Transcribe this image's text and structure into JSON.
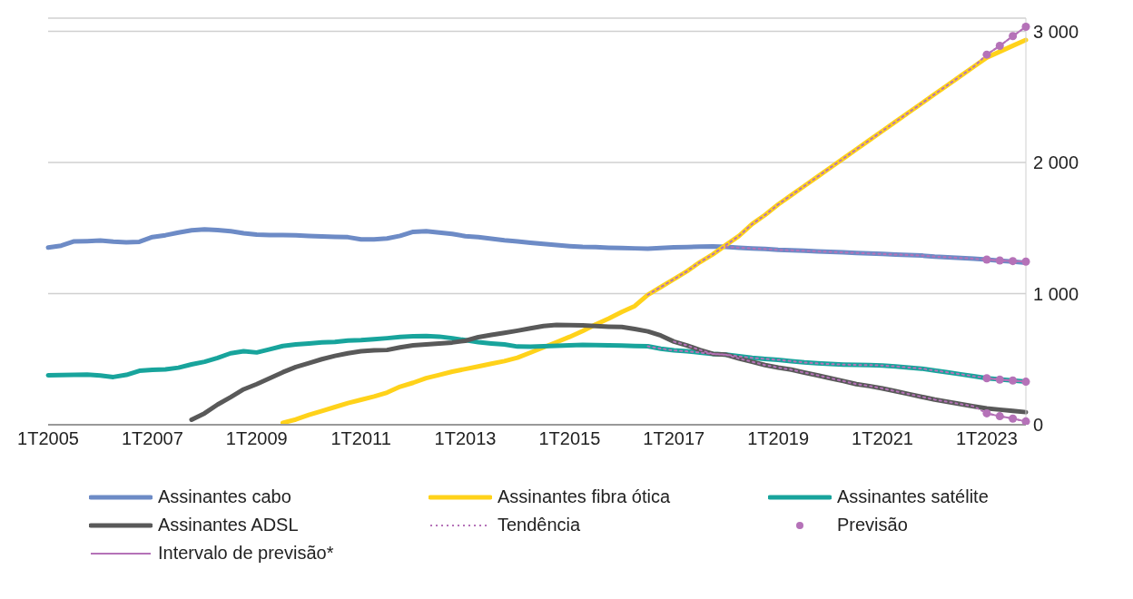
{
  "chart_data": {
    "type": "line",
    "legend": "bottom",
    "grid": "y",
    "categories": [
      "1T2005",
      null,
      null,
      null,
      null,
      null,
      null,
      null,
      "1T2007",
      null,
      null,
      null,
      null,
      null,
      null,
      null,
      "1T2009",
      null,
      null,
      null,
      null,
      null,
      null,
      null,
      "1T2011",
      null,
      null,
      null,
      null,
      null,
      null,
      null,
      "1T2013",
      null,
      null,
      null,
      null,
      null,
      null,
      null,
      "1T2015",
      null,
      null,
      null,
      null,
      null,
      null,
      null,
      "1T2017",
      null,
      null,
      null,
      null,
      null,
      null,
      null,
      "1T2019",
      null,
      null,
      null,
      null,
      null,
      null,
      null,
      "1T2021",
      null,
      null,
      null,
      null,
      null,
      null,
      null,
      "1T2023",
      null,
      null,
      null
    ],
    "ylim": [
      0,
      3100
    ],
    "yticks": [
      0,
      {
        "value": 1000,
        "label": "1 000"
      },
      {
        "value": 2000,
        "label": "2 000"
      },
      {
        "value": 3000,
        "label": "3 000"
      }
    ],
    "series": [
      {
        "name": "Assinantes cabo",
        "color": "#6d8bc6",
        "values": [
          1351,
          1365,
          1398,
          1400,
          1404,
          1396,
          1391,
          1395,
          1431,
          1445,
          1465,
          1482,
          1489,
          1485,
          1476,
          1460,
          1449,
          1447,
          1446,
          1444,
          1440,
          1436,
          1432,
          1430,
          1413,
          1414,
          1420,
          1440,
          1471,
          1475,
          1465,
          1455,
          1438,
          1430,
          1418,
          1406,
          1398,
          1388,
          1378,
          1370,
          1362,
          1356,
          1354,
          1350,
          1348,
          1345,
          1342,
          1348,
          1353,
          1355,
          1358,
          1360,
          1356,
          1350,
          1344,
          1340,
          1333,
          1330,
          1326,
          1322,
          1318,
          1314,
          1310,
          1306,
          1302,
          1298,
          1294,
          1290,
          1282,
          1277,
          1272,
          1266,
          1259,
          1251,
          1243,
          1235
        ]
      },
      {
        "name": "Assinantes fibra ótica",
        "color": "#ffd21a",
        "values": [
          null,
          null,
          null,
          null,
          null,
          null,
          null,
          null,
          null,
          null,
          null,
          null,
          null,
          null,
          null,
          null,
          null,
          null,
          15,
          40,
          75,
          105,
          135,
          165,
          190,
          215,
          245,
          290,
          320,
          355,
          380,
          405,
          425,
          445,
          465,
          485,
          511,
          550,
          590,
          630,
          670,
          715,
          765,
          810,
          860,
          905,
          991,
          1050,
          1110,
          1170,
          1240,
          1300,
          1371,
          1440,
          1530,
          1600,
          1680,
          1750,
          1820,
          1890,
          1960,
          2030,
          2100,
          2170,
          2240,
          2310,
          2380,
          2450,
          2520,
          2590,
          2660,
          2730,
          2800,
          2845,
          2890,
          2934
        ]
      },
      {
        "name": "Assinantes satélite",
        "color": "#18a49c",
        "values": [
          377,
          379,
          381,
          382,
          375,
          364,
          380,
          411,
          418,
          422,
          435,
          460,
          480,
          510,
          545,
          561,
          551,
          575,
          600,
          612,
          620,
          628,
          632,
          642,
          645,
          652,
          660,
          670,
          675,
          676,
          672,
          660,
          645,
          630,
          620,
          612,
          596,
          595,
          598,
          602,
          606,
          609,
          608,
          605,
          603,
          601,
          598,
          580,
          567,
          560,
          550,
          540,
          534,
          522,
          510,
          502,
          495,
          485,
          475,
          468,
          463,
          459,
          456,
          455,
          452,
          445,
          436,
          428,
          414,
          400,
          385,
          370,
          355,
          346,
          337,
          328
        ]
      },
      {
        "name": "Assinantes ADSL",
        "color": "#595959",
        "values": [
          null,
          null,
          null,
          null,
          null,
          null,
          null,
          null,
          null,
          null,
          null,
          38,
          87,
          154,
          210,
          270,
          310,
          355,
          400,
          440,
          470,
          500,
          525,
          545,
          560,
          567,
          570,
          590,
          605,
          612,
          620,
          627,
          640,
          668,
          685,
          700,
          717,
          735,
          752,
          761,
          760,
          757,
          752,
          748,
          746,
          730,
          712,
          680,
          634,
          605,
          570,
          540,
          534,
          505,
          480,
          455,
          436,
          420,
          398,
          377,
          355,
          333,
          310,
          295,
          277,
          256,
          234,
          213,
          192,
          175,
          157,
          140,
          125,
          115,
          105,
          96
        ]
      },
      {
        "name": "Tendência",
        "color": "#b572b8",
        "line_style": "dotted",
        "values": [
          null,
          null,
          null,
          null,
          null,
          null,
          null,
          null,
          null,
          null,
          null,
          null,
          null,
          null,
          null,
          null,
          null,
          null,
          null,
          null,
          null,
          null,
          null,
          null,
          null,
          null,
          null,
          null,
          null,
          null,
          null,
          null,
          null,
          null,
          null,
          null,
          null,
          null,
          null,
          null,
          null,
          null,
          null,
          null,
          null,
          null,
          991,
          1050,
          1110,
          1170,
          1240,
          1300,
          1371,
          1440,
          1530,
          1600,
          1680,
          1750,
          1820,
          1890,
          1960,
          2030,
          2100,
          2170,
          2240,
          2310,
          2380,
          2450,
          2520,
          2590,
          2660,
          2730,
          2822,
          2889,
          2963,
          3034
        ]
      },
      {
        "color": "#b572b8",
        "line_style": "dotted",
        "values": [
          null,
          null,
          null,
          null,
          null,
          null,
          null,
          null,
          null,
          null,
          null,
          null,
          null,
          null,
          null,
          null,
          null,
          null,
          null,
          null,
          null,
          null,
          null,
          null,
          null,
          null,
          null,
          null,
          null,
          null,
          null,
          null,
          null,
          null,
          null,
          null,
          null,
          null,
          null,
          null,
          null,
          null,
          null,
          null,
          null,
          null,
          null,
          null,
          null,
          null,
          null,
          null,
          1356,
          1350,
          1344,
          1340,
          1333,
          1330,
          1326,
          1322,
          1318,
          1314,
          1310,
          1306,
          1302,
          1298,
          1294,
          1290,
          1282,
          1277,
          1272,
          1266,
          1259,
          1252,
          1248,
          1244
        ]
      },
      {
        "color": "#b572b8",
        "line_style": "dotted",
        "values": [
          null,
          null,
          null,
          null,
          null,
          null,
          null,
          null,
          null,
          null,
          null,
          null,
          null,
          null,
          null,
          null,
          null,
          null,
          null,
          null,
          null,
          null,
          null,
          null,
          null,
          null,
          null,
          null,
          null,
          null,
          null,
          null,
          null,
          null,
          null,
          null,
          null,
          null,
          null,
          null,
          null,
          null,
          null,
          null,
          null,
          null,
          598,
          580,
          567,
          560,
          550,
          540,
          534,
          522,
          510,
          502,
          495,
          485,
          475,
          468,
          463,
          459,
          456,
          455,
          452,
          445,
          436,
          428,
          414,
          400,
          385,
          370,
          355,
          344,
          337,
          328
        ]
      },
      {
        "color": "#b572b8",
        "line_style": "dotted",
        "values": [
          null,
          null,
          null,
          null,
          null,
          null,
          null,
          null,
          null,
          null,
          null,
          null,
          null,
          null,
          null,
          null,
          null,
          null,
          null,
          null,
          null,
          null,
          null,
          null,
          null,
          null,
          null,
          null,
          null,
          null,
          null,
          null,
          null,
          null,
          null,
          null,
          null,
          null,
          null,
          null,
          null,
          null,
          null,
          null,
          null,
          null,
          null,
          null,
          634,
          605,
          570,
          540,
          534,
          505,
          480,
          455,
          436,
          420,
          398,
          377,
          355,
          333,
          310,
          295,
          277,
          256,
          234,
          213,
          192,
          175,
          157,
          140,
          87,
          65,
          47,
          25
        ]
      },
      {
        "name": "Previsão",
        "type": "scatter",
        "marker": "circle",
        "color": "#b572b8",
        "values": [
          null,
          null,
          null,
          null,
          null,
          null,
          null,
          null,
          null,
          null,
          null,
          null,
          null,
          null,
          null,
          null,
          null,
          null,
          null,
          null,
          null,
          null,
          null,
          null,
          null,
          null,
          null,
          null,
          null,
          null,
          null,
          null,
          null,
          null,
          null,
          null,
          null,
          null,
          null,
          null,
          null,
          null,
          null,
          null,
          null,
          null,
          null,
          null,
          null,
          null,
          null,
          null,
          null,
          null,
          null,
          null,
          null,
          null,
          null,
          null,
          null,
          null,
          null,
          null,
          null,
          null,
          null,
          null,
          null,
          null,
          null,
          null,
          2822,
          2889,
          2963,
          3034
        ]
      },
      {
        "type": "scatter",
        "marker": "circle",
        "color": "#b572b8",
        "values": [
          null,
          null,
          null,
          null,
          null,
          null,
          null,
          null,
          null,
          null,
          null,
          null,
          null,
          null,
          null,
          null,
          null,
          null,
          null,
          null,
          null,
          null,
          null,
          null,
          null,
          null,
          null,
          null,
          null,
          null,
          null,
          null,
          null,
          null,
          null,
          null,
          null,
          null,
          null,
          null,
          null,
          null,
          null,
          null,
          null,
          null,
          null,
          null,
          null,
          null,
          null,
          null,
          null,
          null,
          null,
          null,
          null,
          null,
          null,
          null,
          null,
          null,
          null,
          null,
          null,
          null,
          null,
          null,
          null,
          null,
          null,
          null,
          1259,
          1252,
          1248,
          1244
        ]
      },
      {
        "type": "scatter",
        "marker": "circle",
        "color": "#b572b8",
        "values": [
          null,
          null,
          null,
          null,
          null,
          null,
          null,
          null,
          null,
          null,
          null,
          null,
          null,
          null,
          null,
          null,
          null,
          null,
          null,
          null,
          null,
          null,
          null,
          null,
          null,
          null,
          null,
          null,
          null,
          null,
          null,
          null,
          null,
          null,
          null,
          null,
          null,
          null,
          null,
          null,
          null,
          null,
          null,
          null,
          null,
          null,
          null,
          null,
          null,
          null,
          null,
          null,
          null,
          null,
          null,
          null,
          null,
          null,
          null,
          null,
          null,
          null,
          null,
          null,
          null,
          null,
          null,
          null,
          null,
          null,
          null,
          null,
          355,
          344,
          337,
          328
        ]
      },
      {
        "type": "scatter",
        "marker": "circle",
        "color": "#b572b8",
        "values": [
          null,
          null,
          null,
          null,
          null,
          null,
          null,
          null,
          null,
          null,
          null,
          null,
          null,
          null,
          null,
          null,
          null,
          null,
          null,
          null,
          null,
          null,
          null,
          null,
          null,
          null,
          null,
          null,
          null,
          null,
          null,
          null,
          null,
          null,
          null,
          null,
          null,
          null,
          null,
          null,
          null,
          null,
          null,
          null,
          null,
          null,
          null,
          null,
          null,
          null,
          null,
          null,
          null,
          null,
          null,
          null,
          null,
          null,
          null,
          null,
          null,
          null,
          null,
          null,
          null,
          null,
          null,
          null,
          null,
          null,
          null,
          null,
          87,
          65,
          47,
          25
        ]
      },
      {
        "name": "Intervalo de previsão*",
        "color": "#b572b8",
        "line_style": "solid",
        "values": [
          null,
          null,
          null,
          null,
          null,
          null,
          null,
          null,
          null,
          null,
          null,
          null,
          null,
          null,
          null,
          null,
          null,
          null,
          null,
          null,
          null,
          null,
          null,
          null,
          null,
          null,
          null,
          null,
          null,
          null,
          null,
          null,
          null,
          null,
          null,
          null,
          null,
          null,
          null,
          null,
          null,
          null,
          null,
          null,
          null,
          null,
          null,
          null,
          null,
          null,
          null,
          null,
          null,
          null,
          null,
          null,
          null,
          null,
          null,
          null,
          null,
          null,
          null,
          null,
          null,
          null,
          null,
          null,
          null,
          null,
          null,
          null,
          2822,
          2889,
          2963,
          3034
        ]
      },
      {
        "color": "#b572b8",
        "line_style": "solid",
        "values": [
          null,
          null,
          null,
          null,
          null,
          null,
          null,
          null,
          null,
          null,
          null,
          null,
          null,
          null,
          null,
          null,
          null,
          null,
          null,
          null,
          null,
          null,
          null,
          null,
          null,
          null,
          null,
          null,
          null,
          null,
          null,
          null,
          null,
          null,
          null,
          null,
          null,
          null,
          null,
          null,
          null,
          null,
          null,
          null,
          null,
          null,
          null,
          null,
          null,
          null,
          null,
          null,
          null,
          null,
          null,
          null,
          null,
          null,
          null,
          null,
          null,
          null,
          null,
          null,
          null,
          null,
          null,
          null,
          null,
          null,
          null,
          null,
          1259,
          1252,
          1248,
          1244
        ]
      },
      {
        "color": "#b572b8",
        "line_style": "solid",
        "values": [
          null,
          null,
          null,
          null,
          null,
          null,
          null,
          null,
          null,
          null,
          null,
          null,
          null,
          null,
          null,
          null,
          null,
          null,
          null,
          null,
          null,
          null,
          null,
          null,
          null,
          null,
          null,
          null,
          null,
          null,
          null,
          null,
          null,
          null,
          null,
          null,
          null,
          null,
          null,
          null,
          null,
          null,
          null,
          null,
          null,
          null,
          null,
          null,
          null,
          null,
          null,
          null,
          null,
          null,
          null,
          null,
          null,
          null,
          null,
          null,
          null,
          null,
          null,
          null,
          null,
          null,
          null,
          null,
          null,
          null,
          null,
          null,
          355,
          344,
          337,
          328
        ]
      },
      {
        "color": "#b572b8",
        "line_style": "solid",
        "values": [
          null,
          null,
          null,
          null,
          null,
          null,
          null,
          null,
          null,
          null,
          null,
          null,
          null,
          null,
          null,
          null,
          null,
          null,
          null,
          null,
          null,
          null,
          null,
          null,
          null,
          null,
          null,
          null,
          null,
          null,
          null,
          null,
          null,
          null,
          null,
          null,
          null,
          null,
          null,
          null,
          null,
          null,
          null,
          null,
          null,
          null,
          null,
          null,
          null,
          null,
          null,
          null,
          null,
          null,
          null,
          null,
          null,
          null,
          null,
          null,
          null,
          null,
          null,
          null,
          null,
          null,
          null,
          null,
          null,
          null,
          null,
          null,
          87,
          65,
          47,
          25
        ]
      }
    ]
  }
}
